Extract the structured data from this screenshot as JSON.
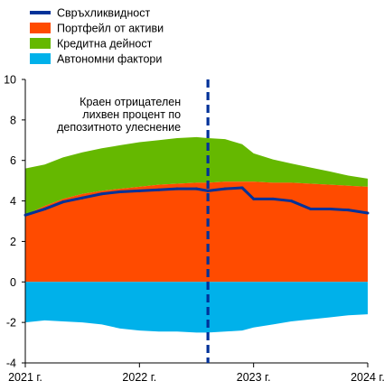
{
  "chart_data": {
    "type": "area",
    "title": "",
    "xlabel": "",
    "ylabel": "",
    "x_tick_labels": [
      "2021 г.",
      "2022 г.",
      "2023 г.",
      "2024 г."
    ],
    "y_tick_labels": [
      "10",
      "8",
      "6",
      "4",
      "2",
      "0",
      "-2",
      "-4"
    ],
    "ylim": [
      -4,
      10
    ],
    "xlim": [
      2021.0,
      2024.0
    ],
    "x": [
      2021.0,
      2021.17,
      2021.33,
      2021.5,
      2021.67,
      2021.83,
      2022.0,
      2022.17,
      2022.33,
      2022.5,
      2022.6,
      2022.75,
      2022.9,
      2023.0,
      2023.17,
      2023.33,
      2023.5,
      2023.67,
      2023.83,
      2024.0
    ],
    "series": [
      {
        "name": "Свръхликвидност",
        "kind": "line",
        "color": "#003299",
        "values": [
          3.3,
          3.6,
          3.95,
          4.15,
          4.35,
          4.45,
          4.5,
          4.55,
          4.6,
          4.6,
          4.5,
          4.6,
          4.65,
          4.1,
          4.1,
          4.0,
          3.6,
          3.6,
          3.55,
          3.4
        ]
      },
      {
        "name": "Портфейл от активи",
        "kind": "area",
        "color": "#FF4B00",
        "values": [
          3.3,
          3.75,
          4.1,
          4.35,
          4.5,
          4.6,
          4.7,
          4.8,
          4.85,
          4.9,
          4.9,
          4.95,
          4.95,
          4.95,
          4.9,
          4.9,
          4.85,
          4.8,
          4.75,
          4.7
        ]
      },
      {
        "name": "Кредитна дейност",
        "kind": "area",
        "color": "#65B800",
        "values": [
          2.3,
          2.05,
          2.05,
          2.05,
          2.1,
          2.15,
          2.2,
          2.2,
          2.25,
          2.25,
          2.2,
          2.1,
          1.85,
          1.4,
          1.15,
          0.95,
          0.8,
          0.65,
          0.5,
          0.4
        ]
      },
      {
        "name": "Автономни фактори",
        "kind": "area",
        "color": "#00B1EA",
        "values": [
          -2.0,
          -1.9,
          -1.95,
          -2.0,
          -2.1,
          -2.3,
          -2.4,
          -2.45,
          -2.45,
          -2.5,
          -2.5,
          -2.45,
          -2.4,
          -2.25,
          -2.1,
          -1.95,
          -1.85,
          -1.75,
          -1.65,
          -1.6
        ]
      }
    ],
    "vline": {
      "x": 2022.6,
      "color": "#003299",
      "label_lines": [
        "Краен отрицателен",
        "лихвен процент по",
        "депозитното улеснение"
      ]
    },
    "legend_position": "top-left",
    "grid": false
  }
}
